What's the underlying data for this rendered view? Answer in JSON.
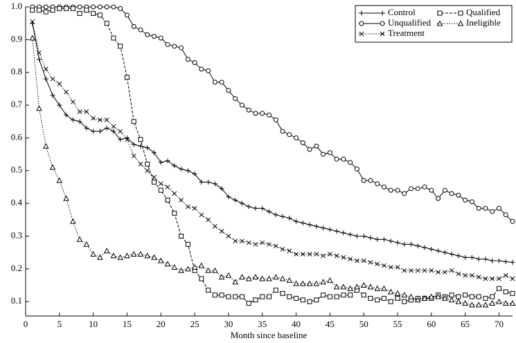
{
  "chart_data": {
    "type": "line",
    "xlabel": "Month since baseline",
    "x": [
      1,
      2,
      3,
      4,
      5,
      6,
      7,
      8,
      9,
      10,
      11,
      12,
      13,
      14,
      15,
      16,
      17,
      18,
      19,
      20,
      21,
      22,
      23,
      24,
      25,
      26,
      27,
      28,
      29,
      30,
      31,
      32,
      33,
      34,
      35,
      36,
      37,
      38,
      39,
      40,
      41,
      42,
      43,
      44,
      45,
      46,
      47,
      48,
      49,
      50,
      51,
      52,
      53,
      54,
      55,
      56,
      57,
      58,
      59,
      60,
      61,
      62,
      63,
      64,
      65,
      66,
      67,
      68,
      69,
      70,
      71,
      72
    ],
    "series": [
      {
        "name": "Control",
        "color": "#000000",
        "dash": "solid",
        "marker": "plus",
        "values": [
          0.95,
          0.84,
          0.78,
          0.73,
          0.7,
          0.67,
          0.655,
          0.65,
          0.63,
          0.62,
          0.62,
          0.63,
          0.62,
          0.595,
          0.6,
          0.58,
          0.575,
          0.57,
          0.555,
          0.525,
          0.53,
          0.515,
          0.505,
          0.5,
          0.49,
          0.465,
          0.465,
          0.46,
          0.445,
          0.42,
          0.41,
          0.4,
          0.39,
          0.385,
          0.385,
          0.375,
          0.365,
          0.36,
          0.355,
          0.345,
          0.34,
          0.335,
          0.33,
          0.325,
          0.32,
          0.315,
          0.31,
          0.305,
          0.3,
          0.3,
          0.295,
          0.29,
          0.29,
          0.285,
          0.28,
          0.275,
          0.275,
          0.27,
          0.265,
          0.26,
          0.255,
          0.25,
          0.245,
          0.24,
          0.235,
          0.235,
          0.23,
          0.23,
          0.225,
          0.225,
          0.222,
          0.22
        ]
      },
      {
        "name": "Unqualified",
        "color": "#000000",
        "dash": "solid",
        "marker": "circle",
        "values": [
          1,
          1,
          1,
          1,
          1,
          1,
          1,
          1,
          1,
          1,
          1,
          1,
          1,
          0.995,
          0.975,
          0.94,
          0.93,
          0.915,
          0.91,
          0.905,
          0.885,
          0.88,
          0.875,
          0.84,
          0.83,
          0.81,
          0.805,
          0.77,
          0.77,
          0.745,
          0.72,
          0.7,
          0.685,
          0.675,
          0.675,
          0.67,
          0.655,
          0.62,
          0.61,
          0.6,
          0.585,
          0.565,
          0.575,
          0.55,
          0.555,
          0.535,
          0.535,
          0.525,
          0.505,
          0.47,
          0.47,
          0.46,
          0.45,
          0.44,
          0.44,
          0.43,
          0.445,
          0.445,
          0.45,
          0.44,
          0.415,
          0.44,
          0.43,
          0.425,
          0.41,
          0.405,
          0.385,
          0.385,
          0.375,
          0.385,
          0.365,
          0.345
        ]
      },
      {
        "name": "Treatment",
        "color": "#000000",
        "dash": "dotted",
        "marker": "cross",
        "values": [
          0.955,
          0.86,
          0.81,
          0.78,
          0.765,
          0.74,
          0.71,
          0.68,
          0.68,
          0.66,
          0.655,
          0.655,
          0.635,
          0.62,
          0.595,
          0.545,
          0.52,
          0.5,
          0.48,
          0.46,
          0.45,
          0.43,
          0.41,
          0.39,
          0.385,
          0.365,
          0.35,
          0.33,
          0.315,
          0.3,
          0.285,
          0.285,
          0.28,
          0.275,
          0.28,
          0.275,
          0.27,
          0.26,
          0.255,
          0.245,
          0.245,
          0.245,
          0.245,
          0.24,
          0.245,
          0.24,
          0.235,
          0.23,
          0.225,
          0.225,
          0.22,
          0.215,
          0.21,
          0.205,
          0.205,
          0.195,
          0.195,
          0.195,
          0.195,
          0.195,
          0.19,
          0.19,
          0.195,
          0.185,
          0.18,
          0.18,
          0.175,
          0.17,
          0.17,
          0.17,
          0.18,
          0.17
        ]
      },
      {
        "name": "Qualified",
        "color": "#000000",
        "dash": "dashed",
        "marker": "square",
        "values": [
          0.99,
          0.99,
          0.985,
          0.99,
          0.995,
          0.995,
          0.995,
          0.98,
          0.99,
          0.98,
          0.975,
          0.95,
          0.905,
          0.88,
          0.785,
          0.65,
          0.595,
          0.52,
          0.465,
          0.44,
          0.41,
          0.37,
          0.3,
          0.275,
          0.195,
          0.17,
          0.135,
          0.12,
          0.12,
          0.115,
          0.115,
          0.115,
          0.095,
          0.105,
          0.115,
          0.115,
          0.135,
          0.125,
          0.115,
          0.11,
          0.105,
          0.1,
          0.105,
          0.12,
          0.115,
          0.115,
          0.12,
          0.12,
          0.135,
          0.12,
          0.11,
          0.105,
          0.11,
          0.1,
          0.11,
          0.1,
          0.105,
          0.11,
          0.11,
          0.11,
          0.12,
          0.115,
          0.12,
          0.115,
          0.12,
          0.115,
          0.115,
          0.11,
          0.115,
          0.14,
          0.13,
          0.125
        ]
      },
      {
        "name": "Ineligible",
        "color": "#000000",
        "dash": "dotted",
        "marker": "triangle",
        "values": [
          0.905,
          0.69,
          0.575,
          0.51,
          0.47,
          0.415,
          0.345,
          0.29,
          0.275,
          0.245,
          0.235,
          0.255,
          0.24,
          0.235,
          0.24,
          0.245,
          0.245,
          0.24,
          0.235,
          0.225,
          0.215,
          0.205,
          0.195,
          0.2,
          0.205,
          0.21,
          0.195,
          0.195,
          0.175,
          0.18,
          0.16,
          0.175,
          0.17,
          0.175,
          0.17,
          0.17,
          0.175,
          0.17,
          0.165,
          0.155,
          0.155,
          0.155,
          0.155,
          0.16,
          0.165,
          0.145,
          0.145,
          0.14,
          0.145,
          0.15,
          0.145,
          0.14,
          0.14,
          0.13,
          0.125,
          0.12,
          0.115,
          0.105,
          0.11,
          0.115,
          0.115,
          0.11,
          0.105,
          0.1,
          0.095,
          0.09,
          0.09,
          0.09,
          0.095,
          0.1,
          0.095,
          0.095
        ]
      }
    ],
    "xlim": [
      0,
      72
    ],
    "xticks": [
      0,
      5,
      10,
      15,
      20,
      25,
      30,
      35,
      40,
      45,
      50,
      55,
      60,
      65,
      70
    ],
    "ylim": [
      0.056,
      1
    ],
    "yticks": [
      0.1,
      0.2,
      0.3,
      0.4,
      0.5,
      0.6,
      0.7,
      0.8,
      0.9,
      {
        "value": 1,
        "label": "1.0"
      }
    ],
    "legend": "upper right"
  }
}
